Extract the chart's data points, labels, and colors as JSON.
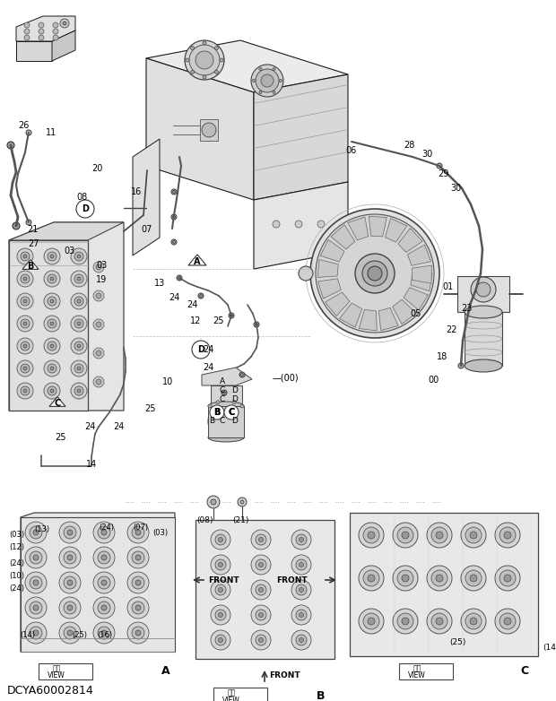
{
  "background_color": "#ffffff",
  "line_color": "#1a1a1a",
  "text_color": "#000000",
  "footer_text": "DCYA60002814",
  "gray_fill": "#e8e8e8",
  "mid_gray": "#c8c8c8",
  "dark_gray": "#888888",
  "parts_labels": [
    [
      26,
      140,
      "26"
    ],
    [
      57,
      148,
      "11"
    ],
    [
      108,
      188,
      "20"
    ],
    [
      152,
      214,
      "16"
    ],
    [
      164,
      256,
      "07"
    ],
    [
      92,
      220,
      "08"
    ],
    [
      36,
      256,
      "21"
    ],
    [
      37,
      272,
      "27"
    ],
    [
      78,
      280,
      "03"
    ],
    [
      113,
      296,
      "03"
    ],
    [
      113,
      312,
      "19"
    ],
    [
      178,
      316,
      "13"
    ],
    [
      194,
      332,
      "24"
    ],
    [
      214,
      340,
      "24"
    ],
    [
      218,
      358,
      "12"
    ],
    [
      244,
      358,
      "25"
    ],
    [
      232,
      390,
      "24"
    ],
    [
      232,
      410,
      "24"
    ],
    [
      187,
      426,
      "10"
    ],
    [
      168,
      456,
      "25"
    ],
    [
      132,
      476,
      "24"
    ],
    [
      100,
      476,
      "24"
    ],
    [
      68,
      488,
      "25"
    ],
    [
      102,
      518,
      "14"
    ],
    [
      392,
      168,
      "06"
    ],
    [
      456,
      162,
      "28"
    ],
    [
      476,
      172,
      "30"
    ],
    [
      494,
      194,
      "29"
    ],
    [
      508,
      210,
      "30"
    ],
    [
      500,
      320,
      "01"
    ],
    [
      520,
      344,
      "23"
    ],
    [
      504,
      368,
      "22"
    ],
    [
      493,
      398,
      "18"
    ],
    [
      484,
      424,
      "00"
    ],
    [
      464,
      350,
      "05"
    ],
    [
      318,
      422,
      "—(00)"
    ]
  ],
  "view_a_labels": [
    [
      10,
      596,
      "(03)"
    ],
    [
      10,
      610,
      "(12)"
    ],
    [
      10,
      628,
      "(24)"
    ],
    [
      10,
      642,
      "(10)"
    ],
    [
      10,
      656,
      "(24)"
    ],
    [
      38,
      590,
      "(13)"
    ],
    [
      110,
      588,
      "(24)"
    ],
    [
      148,
      588,
      "(07)"
    ],
    [
      170,
      594,
      "(03)"
    ],
    [
      22,
      708,
      "(14)"
    ],
    [
      80,
      708,
      "(25)"
    ],
    [
      108,
      708,
      "(16)"
    ]
  ],
  "view_b_labels": [
    [
      228,
      580,
      "(08)"
    ],
    [
      268,
      580,
      "(21)"
    ]
  ]
}
